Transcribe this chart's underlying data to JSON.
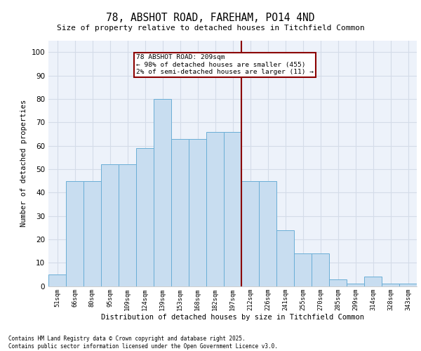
{
  "title1": "78, ABSHOT ROAD, FAREHAM, PO14 4ND",
  "title2": "Size of property relative to detached houses in Titchfield Common",
  "xlabel": "Distribution of detached houses by size in Titchfield Common",
  "ylabel": "Number of detached properties",
  "categories": [
    "51sqm",
    "66sqm",
    "80sqm",
    "95sqm",
    "109sqm",
    "124sqm",
    "139sqm",
    "153sqm",
    "168sqm",
    "182sqm",
    "197sqm",
    "212sqm",
    "226sqm",
    "241sqm",
    "255sqm",
    "270sqm",
    "285sqm",
    "299sqm",
    "314sqm",
    "328sqm",
    "343sqm"
  ],
  "values": [
    5,
    45,
    45,
    52,
    52,
    59,
    80,
    63,
    63,
    66,
    66,
    45,
    45,
    24,
    14,
    14,
    3,
    1,
    4,
    1,
    1
  ],
  "highlight_values": [
    0,
    0,
    0,
    0,
    0,
    0,
    0,
    0,
    0,
    0,
    0,
    1,
    0,
    0,
    0,
    0,
    0,
    0,
    0,
    0,
    0
  ],
  "bar_color": "#c8ddf0",
  "bar_edge_color": "#6aaed6",
  "vline_color": "#8b0000",
  "annotation_text": "78 ABSHOT ROAD: 209sqm\n← 98% of detached houses are smaller (455)\n2% of semi-detached houses are larger (11) →",
  "annotation_box_color": "#8b0000",
  "grid_color": "#d4dce8",
  "background_color": "#edf2fa",
  "footer1": "Contains HM Land Registry data © Crown copyright and database right 2025.",
  "footer2": "Contains public sector information licensed under the Open Government Licence v3.0.",
  "ylim_max": 105,
  "yticks": [
    0,
    10,
    20,
    30,
    40,
    50,
    60,
    70,
    80,
    90,
    100
  ]
}
